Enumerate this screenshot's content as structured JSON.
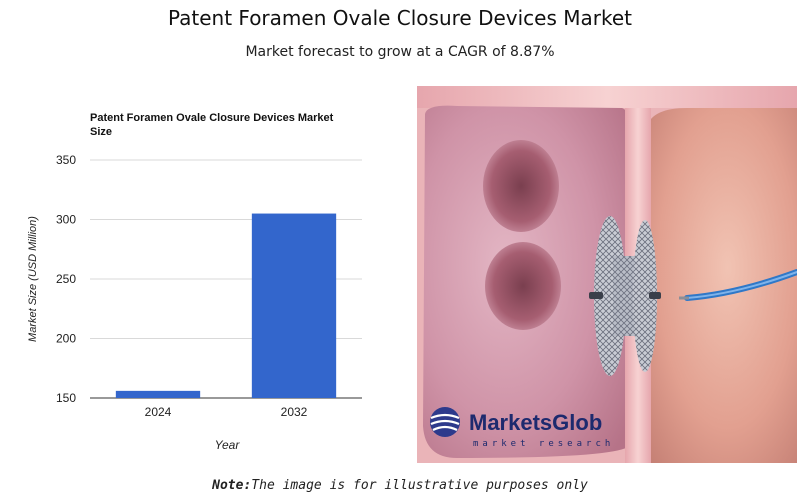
{
  "header": {
    "title": "Patent Foramen Ovale Closure Devices Market",
    "subtitle": "Market forecast to grow at a CAGR of 8.87%"
  },
  "chart_data": {
    "type": "bar",
    "title_line1": "Patent Foramen Ovale Closure Devices Market",
    "title_line2": "Size",
    "categories": [
      "2024",
      "2032"
    ],
    "values": [
      156,
      305
    ],
    "xlabel": "Year",
    "ylabel": "Market Size (USD Million)",
    "ylim": [
      150,
      350
    ],
    "yticks": [
      150,
      200,
      250,
      300,
      350
    ],
    "grid": true,
    "bar_color": "#3366cc"
  },
  "illustration": {
    "brand": "MarketsGlob",
    "brand_tagline": "market research",
    "icon": "heart-septum-occluder-illustration"
  },
  "footer": {
    "note_label": "Note:",
    "note_text": "The image is for illustrative purposes only"
  }
}
